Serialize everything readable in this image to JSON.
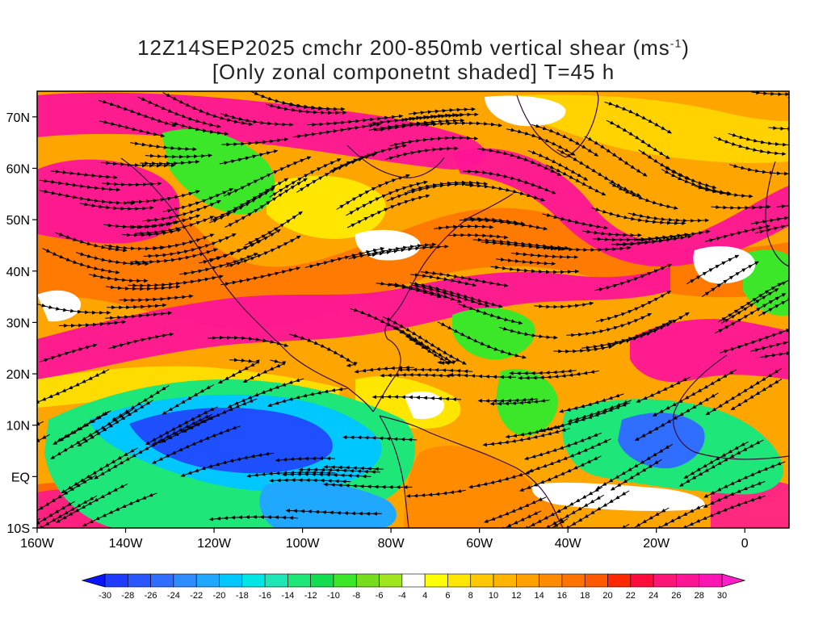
{
  "title": {
    "line1_prefix": "12Z14SEP2025 cmchr 200-850mb vertical shear (ms",
    "line1_sup": "-1",
    "line1_suffix": ")",
    "line2": "[Only zonal componetnt shaded] T=45 h"
  },
  "map": {
    "lon_range": [
      -160,
      10
    ],
    "lat_range": [
      -10,
      75
    ],
    "lat_ticks": [
      {
        "value": 70,
        "label": "70N"
      },
      {
        "value": 60,
        "label": "60N"
      },
      {
        "value": 50,
        "label": "50N"
      },
      {
        "value": 40,
        "label": "40N"
      },
      {
        "value": 30,
        "label": "30N"
      },
      {
        "value": 20,
        "label": "20N"
      },
      {
        "value": 10,
        "label": "10N"
      },
      {
        "value": 0,
        "label": "EQ"
      },
      {
        "value": -10,
        "label": "10S"
      }
    ],
    "lon_ticks": [
      {
        "value": -160,
        "label": "160W"
      },
      {
        "value": -140,
        "label": "140W"
      },
      {
        "value": -120,
        "label": "120W"
      },
      {
        "value": -100,
        "label": "100W"
      },
      {
        "value": -80,
        "label": "80W"
      },
      {
        "value": -60,
        "label": "60W"
      },
      {
        "value": -40,
        "label": "40W"
      },
      {
        "value": -20,
        "label": "20W"
      },
      {
        "value": 0,
        "label": "0"
      }
    ]
  },
  "colorbar": {
    "labels": [
      "-30",
      "-28",
      "-26",
      "-24",
      "-22",
      "-20",
      "-18",
      "-16",
      "-14",
      "-12",
      "-10",
      "-8",
      "-6",
      "-4",
      "4",
      "6",
      "8",
      "10",
      "12",
      "14",
      "16",
      "18",
      "20",
      "22",
      "24",
      "26",
      "28",
      "30"
    ],
    "colors": [
      "#1e3cff",
      "#2a55ff",
      "#2f6eff",
      "#2f8cff",
      "#20a8ff",
      "#00c8ff",
      "#00e6e6",
      "#1ee6b4",
      "#1ee678",
      "#14dc50",
      "#3ce628",
      "#78dc1e",
      "#a0e61e",
      "#ffffff",
      "#ffff00",
      "#ffe600",
      "#ffc800",
      "#ffb400",
      "#ffa000",
      "#ff8c00",
      "#ff7300",
      "#ff5a00",
      "#ff2800",
      "#ff0a3c",
      "#ff1478",
      "#ff1496",
      "#ff14b4"
    ],
    "low_color": "#0a14ff",
    "high_color": "#ff1ec8"
  }
}
